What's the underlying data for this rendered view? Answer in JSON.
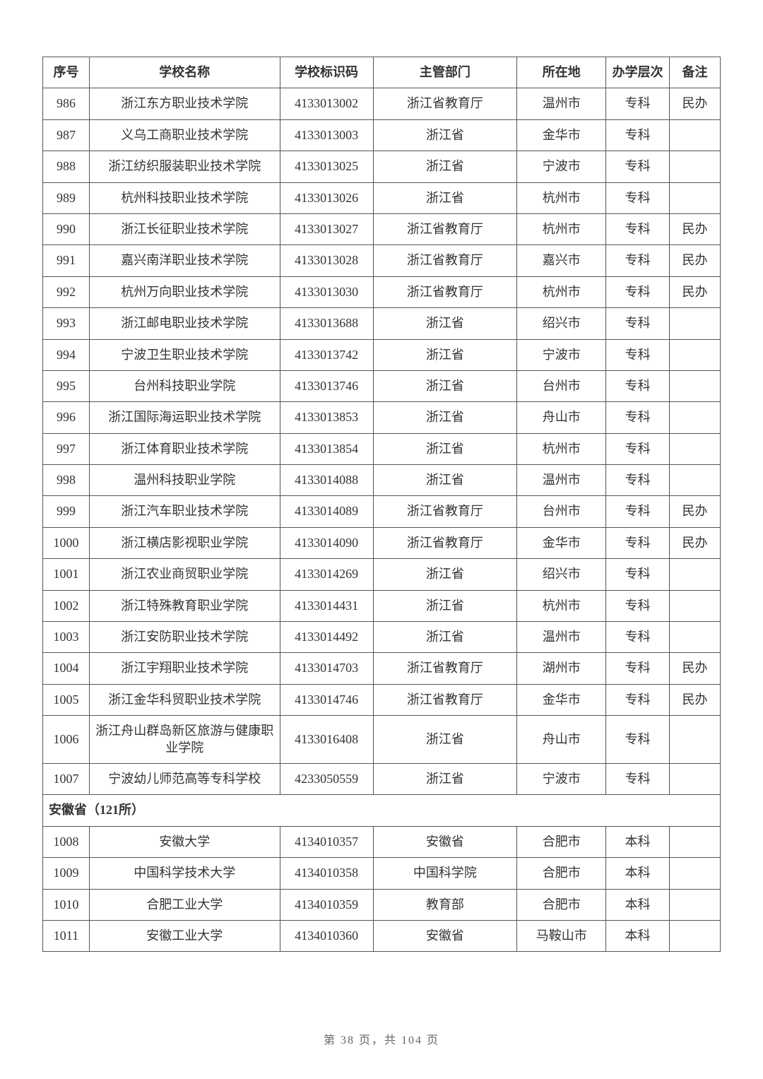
{
  "columns": [
    "序号",
    "学校名称",
    "学校标识码",
    "主管部门",
    "所在地",
    "办学层次",
    "备注"
  ],
  "section_label": "安徽省（121所）",
  "footer": "第 38 页，共 104 页",
  "rows_top": [
    {
      "seq": "986",
      "name": "浙江东方职业技术学院",
      "code": "4133013002",
      "dept": "浙江省教育厅",
      "loc": "温州市",
      "level": "专科",
      "note": "民办"
    },
    {
      "seq": "987",
      "name": "义乌工商职业技术学院",
      "code": "4133013003",
      "dept": "浙江省",
      "loc": "金华市",
      "level": "专科",
      "note": ""
    },
    {
      "seq": "988",
      "name": "浙江纺织服装职业技术学院",
      "code": "4133013025",
      "dept": "浙江省",
      "loc": "宁波市",
      "level": "专科",
      "note": ""
    },
    {
      "seq": "989",
      "name": "杭州科技职业技术学院",
      "code": "4133013026",
      "dept": "浙江省",
      "loc": "杭州市",
      "level": "专科",
      "note": ""
    },
    {
      "seq": "990",
      "name": "浙江长征职业技术学院",
      "code": "4133013027",
      "dept": "浙江省教育厅",
      "loc": "杭州市",
      "level": "专科",
      "note": "民办"
    },
    {
      "seq": "991",
      "name": "嘉兴南洋职业技术学院",
      "code": "4133013028",
      "dept": "浙江省教育厅",
      "loc": "嘉兴市",
      "level": "专科",
      "note": "民办"
    },
    {
      "seq": "992",
      "name": "杭州万向职业技术学院",
      "code": "4133013030",
      "dept": "浙江省教育厅",
      "loc": "杭州市",
      "level": "专科",
      "note": "民办"
    },
    {
      "seq": "993",
      "name": "浙江邮电职业技术学院",
      "code": "4133013688",
      "dept": "浙江省",
      "loc": "绍兴市",
      "level": "专科",
      "note": ""
    },
    {
      "seq": "994",
      "name": "宁波卫生职业技术学院",
      "code": "4133013742",
      "dept": "浙江省",
      "loc": "宁波市",
      "level": "专科",
      "note": ""
    },
    {
      "seq": "995",
      "name": "台州科技职业学院",
      "code": "4133013746",
      "dept": "浙江省",
      "loc": "台州市",
      "level": "专科",
      "note": ""
    },
    {
      "seq": "996",
      "name": "浙江国际海运职业技术学院",
      "code": "4133013853",
      "dept": "浙江省",
      "loc": "舟山市",
      "level": "专科",
      "note": ""
    },
    {
      "seq": "997",
      "name": "浙江体育职业技术学院",
      "code": "4133013854",
      "dept": "浙江省",
      "loc": "杭州市",
      "level": "专科",
      "note": ""
    },
    {
      "seq": "998",
      "name": "温州科技职业学院",
      "code": "4133014088",
      "dept": "浙江省",
      "loc": "温州市",
      "level": "专科",
      "note": ""
    },
    {
      "seq": "999",
      "name": "浙江汽车职业技术学院",
      "code": "4133014089",
      "dept": "浙江省教育厅",
      "loc": "台州市",
      "level": "专科",
      "note": "民办"
    },
    {
      "seq": "1000",
      "name": "浙江横店影视职业学院",
      "code": "4133014090",
      "dept": "浙江省教育厅",
      "loc": "金华市",
      "level": "专科",
      "note": "民办"
    },
    {
      "seq": "1001",
      "name": "浙江农业商贸职业学院",
      "code": "4133014269",
      "dept": "浙江省",
      "loc": "绍兴市",
      "level": "专科",
      "note": ""
    },
    {
      "seq": "1002",
      "name": "浙江特殊教育职业学院",
      "code": "4133014431",
      "dept": "浙江省",
      "loc": "杭州市",
      "level": "专科",
      "note": ""
    },
    {
      "seq": "1003",
      "name": "浙江安防职业技术学院",
      "code": "4133014492",
      "dept": "浙江省",
      "loc": "温州市",
      "level": "专科",
      "note": ""
    },
    {
      "seq": "1004",
      "name": "浙江宇翔职业技术学院",
      "code": "4133014703",
      "dept": "浙江省教育厅",
      "loc": "湖州市",
      "level": "专科",
      "note": "民办"
    },
    {
      "seq": "1005",
      "name": "浙江金华科贸职业技术学院",
      "code": "4133014746",
      "dept": "浙江省教育厅",
      "loc": "金华市",
      "level": "专科",
      "note": "民办"
    },
    {
      "seq": "1006",
      "name": "浙江舟山群岛新区旅游与健康职业学院",
      "code": "4133016408",
      "dept": "浙江省",
      "loc": "舟山市",
      "level": "专科",
      "note": ""
    },
    {
      "seq": "1007",
      "name": "宁波幼儿师范高等专科学校",
      "code": "4233050559",
      "dept": "浙江省",
      "loc": "宁波市",
      "level": "专科",
      "note": ""
    }
  ],
  "rows_bottom": [
    {
      "seq": "1008",
      "name": "安徽大学",
      "code": "4134010357",
      "dept": "安徽省",
      "loc": "合肥市",
      "level": "本科",
      "note": ""
    },
    {
      "seq": "1009",
      "name": "中国科学技术大学",
      "code": "4134010358",
      "dept": "中国科学院",
      "loc": "合肥市",
      "level": "本科",
      "note": ""
    },
    {
      "seq": "1010",
      "name": "合肥工业大学",
      "code": "4134010359",
      "dept": "教育部",
      "loc": "合肥市",
      "level": "本科",
      "note": ""
    },
    {
      "seq": "1011",
      "name": "安徽工业大学",
      "code": "4134010360",
      "dept": "安徽省",
      "loc": "马鞍山市",
      "level": "本科",
      "note": ""
    }
  ]
}
